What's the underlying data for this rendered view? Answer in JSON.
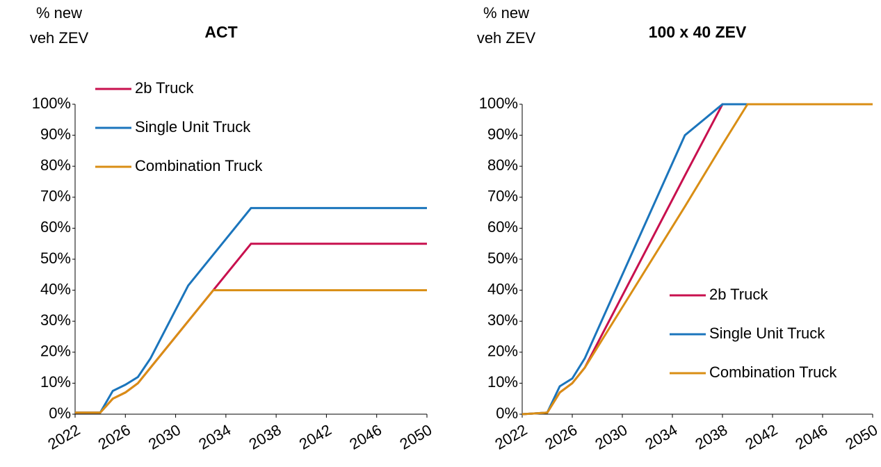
{
  "chart_data": [
    {
      "type": "line",
      "title": "ACT",
      "y_label": [
        "% new",
        "veh ZEV"
      ],
      "x": [
        2022,
        2024,
        2025,
        2026,
        2027,
        2028,
        2031,
        2033,
        2036,
        2050
      ],
      "series": [
        {
          "name": "2b Truck",
          "color": "#c8104e",
          "values": [
            0.5,
            0.5,
            5,
            7,
            10,
            15,
            30,
            40,
            55,
            55
          ]
        },
        {
          "name": "Single Unit Truck",
          "color": "#1b75bc",
          "values": [
            0.5,
            0.5,
            7.5,
            9.5,
            12,
            18,
            41.5,
            51.5,
            66.5,
            66.5
          ]
        },
        {
          "name": "Combination Truck",
          "color": "#d98e14",
          "values": [
            0.5,
            0.5,
            5,
            7,
            10,
            15,
            30,
            40,
            40,
            40
          ]
        }
      ],
      "xlim": [
        2022,
        2050
      ],
      "xticks": [
        2022,
        2026,
        2030,
        2034,
        2038,
        2042,
        2046,
        2050
      ],
      "ylim": [
        0,
        100
      ],
      "yticks": [
        {
          "value": 0,
          "label": "0%"
        },
        {
          "value": 10,
          "label": "10%"
        },
        {
          "value": 20,
          "label": "20%"
        },
        {
          "value": 30,
          "label": "30%"
        },
        {
          "value": 40,
          "label": "40%"
        },
        {
          "value": 50,
          "label": "50%"
        },
        {
          "value": 60,
          "label": "60%"
        },
        {
          "value": 70,
          "label": "70%"
        },
        {
          "value": 80,
          "label": "80%"
        },
        {
          "value": 90,
          "label": "90%"
        },
        {
          "value": 100,
          "label": "100%"
        }
      ],
      "legend": "upper left"
    },
    {
      "type": "line",
      "title": "100 x 40 ZEV",
      "y_label": [
        "% new",
        "veh ZEV"
      ],
      "x": [
        2022,
        2024,
        2025,
        2026,
        2027,
        2035,
        2038,
        2040,
        2050
      ],
      "series": [
        {
          "name": "2b Truck",
          "color": "#c8104e",
          "values": [
            0,
            0.5,
            7,
            10,
            15,
            77,
            100,
            100,
            100
          ]
        },
        {
          "name": "Single Unit Truck",
          "color": "#1b75bc",
          "values": [
            0,
            0.5,
            9,
            11.5,
            18,
            90,
            100,
            100,
            100
          ]
        },
        {
          "name": "Combination Truck",
          "color": "#d98e14",
          "values": [
            0,
            0.5,
            7,
            10,
            15,
            67,
            87,
            100,
            100
          ]
        }
      ],
      "xlim": [
        2022,
        2050
      ],
      "xticks": [
        2022,
        2026,
        2030,
        2034,
        2038,
        2042,
        2046,
        2050
      ],
      "ylim": [
        0,
        100
      ],
      "yticks": [
        {
          "value": 0,
          "label": "0%"
        },
        {
          "value": 10,
          "label": "10%"
        },
        {
          "value": 20,
          "label": "20%"
        },
        {
          "value": 30,
          "label": "30%"
        },
        {
          "value": 40,
          "label": "40%"
        },
        {
          "value": 50,
          "label": "50%"
        },
        {
          "value": 60,
          "label": "60%"
        },
        {
          "value": 70,
          "label": "70%"
        },
        {
          "value": 80,
          "label": "80%"
        },
        {
          "value": 90,
          "label": "90%"
        },
        {
          "value": 100,
          "label": "100%"
        }
      ],
      "legend": "lower right"
    }
  ]
}
